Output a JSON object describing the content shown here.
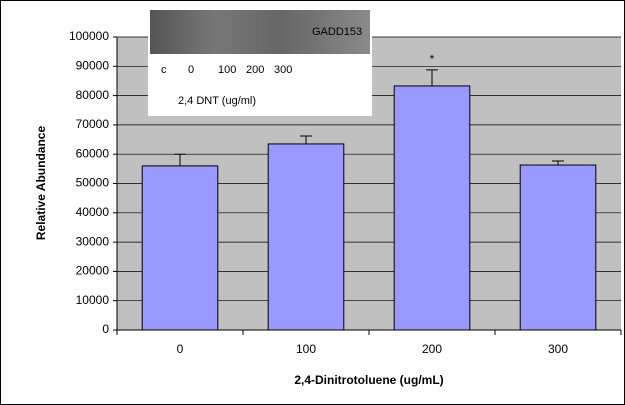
{
  "chart_data": {
    "type": "bar",
    "categories": [
      "0",
      "100",
      "200",
      "300"
    ],
    "values": [
      56000,
      63500,
      83300,
      56300
    ],
    "errors": [
      4000,
      2700,
      5500,
      1400
    ],
    "color": "#9999ff",
    "ylim": [
      0,
      100000
    ],
    "yticks": [
      0,
      10000,
      20000,
      30000,
      40000,
      50000,
      60000,
      70000,
      80000,
      90000,
      100000
    ],
    "grid": true,
    "x_label": "2,4-Dinitrotoluene (ug/mL)",
    "y_label": "Relative Abundance",
    "annotation": "*",
    "inset": {
      "label": "GADD153",
      "lanes": [
        "c",
        "0",
        "100",
        "200",
        "300"
      ],
      "caption": "2,4 DNT (ug/ml)"
    }
  }
}
